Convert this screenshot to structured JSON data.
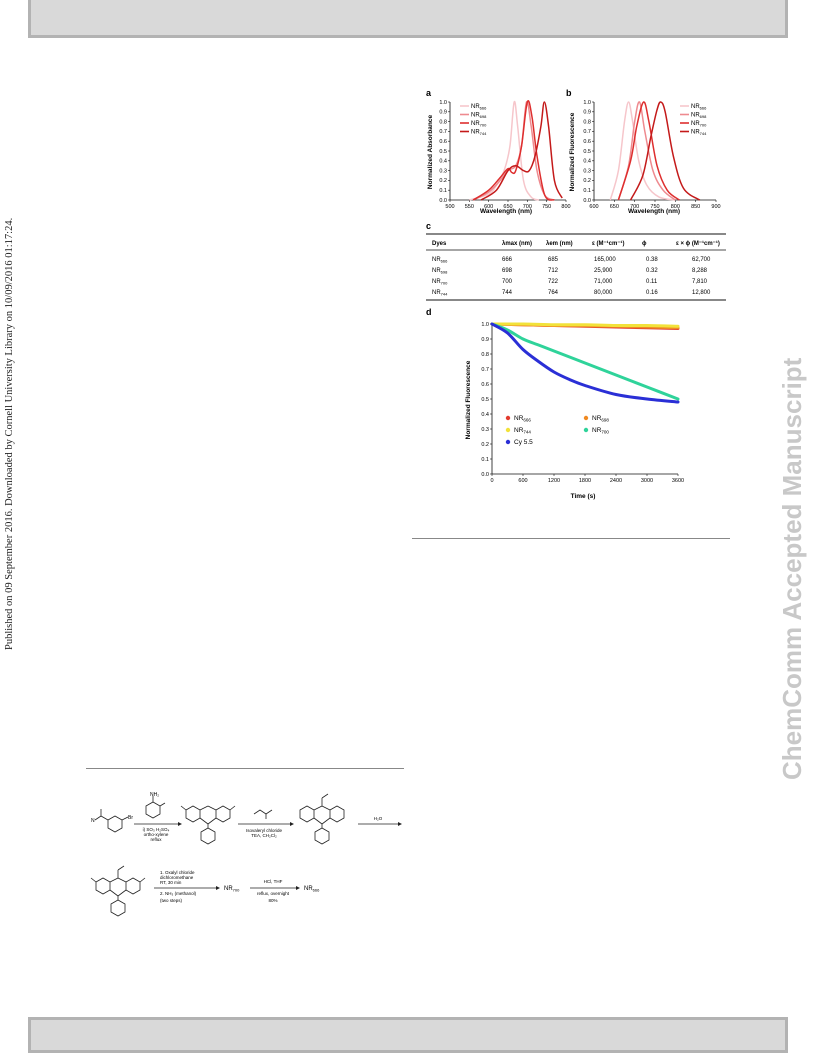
{
  "side_note": "Published on 09 September 2016. Downloaded by Cornell University Library on 10/09/2016 01:17:24.",
  "watermark": "ChemComm Accepted Manuscript",
  "panel_a": {
    "letter": "a",
    "xlabel": "Wavelength (nm)",
    "ylabel": "Normalized Absorbance",
    "xticks": [
      "500",
      "550",
      "600",
      "650",
      "700",
      "750",
      "800"
    ],
    "yticks": [
      "0.0",
      "0.1",
      "0.2",
      "0.3",
      "0.4",
      "0.5",
      "0.6",
      "0.7",
      "0.8",
      "0.9",
      "1.0"
    ],
    "legend": [
      {
        "base": "NR",
        "sub": "666",
        "color": "#f6c6cb"
      },
      {
        "base": "NR",
        "sub": "698",
        "color": "#ee8a8f"
      },
      {
        "base": "NR",
        "sub": "700",
        "color": "#de2e2e"
      },
      {
        "base": "NR",
        "sub": "744",
        "color": "#c41a1a"
      }
    ]
  },
  "panel_b": {
    "letter": "b",
    "xlabel": "Wavelength (nm)",
    "ylabel": "Normalized Fluorescence",
    "xticks": [
      "600",
      "650",
      "700",
      "750",
      "800",
      "850",
      "900"
    ],
    "yticks": [
      "0.0",
      "0.1",
      "0.2",
      "0.3",
      "0.4",
      "0.5",
      "0.6",
      "0.7",
      "0.8",
      "0.9",
      "1.0"
    ],
    "legend": [
      {
        "base": "NR",
        "sub": "666",
        "color": "#f6c6cb"
      },
      {
        "base": "NR",
        "sub": "698",
        "color": "#ee8a8f"
      },
      {
        "base": "NR",
        "sub": "700",
        "color": "#de2e2e"
      },
      {
        "base": "NR",
        "sub": "744",
        "color": "#c41a1a"
      }
    ]
  },
  "panel_c": {
    "letter": "c",
    "headers": [
      "Dyes",
      "λmax (nm)",
      "λem (nm)",
      "ε (M⁻¹cm⁻¹)",
      "ϕ",
      "ε × ϕ (M⁻¹cm⁻¹)"
    ],
    "rows": [
      {
        "dye": "NR",
        "sub": "666",
        "lmax": "666",
        "lem": "685",
        "eps": "165,000",
        "phi": "0.38",
        "prod": "62,700"
      },
      {
        "dye": "NR",
        "sub": "698",
        "lmax": "698",
        "lem": "712",
        "eps": "25,900",
        "phi": "0.32",
        "prod": "8,288"
      },
      {
        "dye": "NR",
        "sub": "700",
        "lmax": "700",
        "lem": "722",
        "eps": "71,000",
        "phi": "0.11",
        "prod": "7,810"
      },
      {
        "dye": "NR",
        "sub": "744",
        "lmax": "744",
        "lem": "764",
        "eps": "80,000",
        "phi": "0.16",
        "prod": "12,800"
      }
    ]
  },
  "panel_d": {
    "letter": "d",
    "xlabel": "Time (s)",
    "ylabel": "Normalized Fluorescence",
    "xticks": [
      "0",
      "600",
      "1200",
      "1800",
      "2400",
      "3000",
      "3600"
    ],
    "yticks": [
      "0.0",
      "0.1",
      "0.2",
      "0.3",
      "0.4",
      "0.5",
      "0.6",
      "0.7",
      "0.8",
      "0.9",
      "1.0"
    ],
    "legend": [
      {
        "base": "NR",
        "sub": "666",
        "color": "#e23b2e"
      },
      {
        "base": "NR",
        "sub": "698",
        "color": "#f08a22"
      },
      {
        "base": "NR",
        "sub": "744",
        "color": "#f2e23a"
      },
      {
        "base": "NR",
        "sub": "700",
        "color": "#2fd39a"
      },
      {
        "base": "Cy 5.5",
        "sub": "",
        "color": "#2a2fd6"
      }
    ]
  },
  "scheme": {
    "step1": [
      "i) SO₃ H₂SO₄",
      "ortho-xylene",
      "reflux"
    ],
    "step2": [
      "Isovaleryl chloride",
      "TEA, CH₂Cl₂"
    ],
    "step3": "H₂O",
    "step4": [
      "1. Oxalyl chloride",
      "dichloromethane",
      "RT, 30 min",
      "2. NH₃ (methanol)",
      "(two steps)"
    ],
    "product_mid": {
      "base": "NR",
      "sub": "700"
    },
    "step5": [
      "HCl, THF",
      "reflux, overnight",
      "80%"
    ],
    "product_end": {
      "base": "NR",
      "sub": "666"
    }
  },
  "chart_data": [
    {
      "type": "line",
      "title": "",
      "xlabel": "Wavelength (nm)",
      "ylabel": "Normalized Absorbance",
      "xlim": [
        500,
        800
      ],
      "ylim": [
        0,
        1.0
      ],
      "series": [
        {
          "name": "NR666",
          "x": [
            550,
            600,
            620,
            640,
            655,
            666,
            675,
            690,
            710,
            730
          ],
          "y": [
            0.0,
            0.06,
            0.15,
            0.3,
            0.55,
            1.0,
            0.75,
            0.2,
            0.03,
            0.0
          ]
        },
        {
          "name": "NR698",
          "x": [
            560,
            600,
            630,
            650,
            670,
            685,
            698,
            710,
            725,
            745,
            770
          ],
          "y": [
            0.0,
            0.08,
            0.2,
            0.3,
            0.35,
            0.55,
            1.0,
            0.75,
            0.3,
            0.05,
            0.0
          ]
        },
        {
          "name": "NR700",
          "x": [
            560,
            600,
            630,
            650,
            660,
            670,
            685,
            700,
            712,
            725,
            745,
            770
          ],
          "y": [
            0.0,
            0.1,
            0.23,
            0.32,
            0.28,
            0.3,
            0.55,
            1.0,
            0.85,
            0.45,
            0.05,
            0.0
          ]
        },
        {
          "name": "NR744",
          "x": [
            580,
            620,
            650,
            670,
            690,
            705,
            720,
            735,
            744,
            755,
            770,
            790
          ],
          "y": [
            0.0,
            0.1,
            0.3,
            0.35,
            0.3,
            0.3,
            0.45,
            0.75,
            1.0,
            0.75,
            0.2,
            0.02
          ]
        }
      ]
    },
    {
      "type": "line",
      "title": "",
      "xlabel": "Wavelength (nm)",
      "ylabel": "Normalized Fluorescence",
      "xlim": [
        600,
        900
      ],
      "ylim": [
        0,
        1.0
      ],
      "series": [
        {
          "name": "NR666",
          "x": [
            640,
            660,
            675,
            685,
            695,
            710,
            730,
            760,
            800
          ],
          "y": [
            0.0,
            0.3,
            0.8,
            1.0,
            0.8,
            0.4,
            0.15,
            0.03,
            0.0
          ]
        },
        {
          "name": "NR698",
          "x": [
            660,
            685,
            700,
            712,
            725,
            745,
            770,
            800
          ],
          "y": [
            0.0,
            0.35,
            0.8,
            1.0,
            0.7,
            0.3,
            0.1,
            0.0
          ]
        },
        {
          "name": "NR700",
          "x": [
            660,
            690,
            705,
            722,
            735,
            755,
            780,
            810
          ],
          "y": [
            0.0,
            0.4,
            0.75,
            1.0,
            0.8,
            0.35,
            0.1,
            0.0
          ]
        },
        {
          "name": "NR744",
          "x": [
            690,
            720,
            740,
            755,
            764,
            775,
            795,
            820,
            860
          ],
          "y": [
            0.0,
            0.25,
            0.65,
            0.92,
            1.0,
            0.9,
            0.45,
            0.12,
            0.0
          ]
        }
      ]
    },
    {
      "type": "scatter",
      "title": "",
      "xlabel": "Time (s)",
      "ylabel": "Normalized Fluorescence",
      "xlim": [
        0,
        3600
      ],
      "ylim": [
        0,
        1.0
      ],
      "series": [
        {
          "name": "NR666",
          "x": [
            0,
            600,
            1200,
            1800,
            2400,
            3000,
            3600
          ],
          "y": [
            1.0,
            0.995,
            0.99,
            0.985,
            0.98,
            0.975,
            0.97
          ]
        },
        {
          "name": "NR698",
          "x": [
            0,
            600,
            1200,
            1800,
            2400,
            3000,
            3600
          ],
          "y": [
            1.0,
            0.995,
            0.99,
            0.988,
            0.985,
            0.98,
            0.975
          ]
        },
        {
          "name": "NR744",
          "x": [
            0,
            600,
            1200,
            1800,
            2400,
            3000,
            3600
          ],
          "y": [
            1.0,
            1.0,
            0.995,
            0.995,
            0.99,
            0.99,
            0.985
          ]
        },
        {
          "name": "NR700",
          "x": [
            0,
            300,
            600,
            900,
            1200,
            1800,
            2400,
            3000,
            3600
          ],
          "y": [
            1.0,
            0.96,
            0.9,
            0.86,
            0.82,
            0.74,
            0.66,
            0.58,
            0.5
          ]
        },
        {
          "name": "Cy 5.5",
          "x": [
            0,
            300,
            600,
            900,
            1200,
            1500,
            1800,
            2400,
            3000,
            3600
          ],
          "y": [
            1.0,
            0.94,
            0.83,
            0.75,
            0.68,
            0.63,
            0.59,
            0.53,
            0.5,
            0.48
          ]
        }
      ]
    }
  ]
}
